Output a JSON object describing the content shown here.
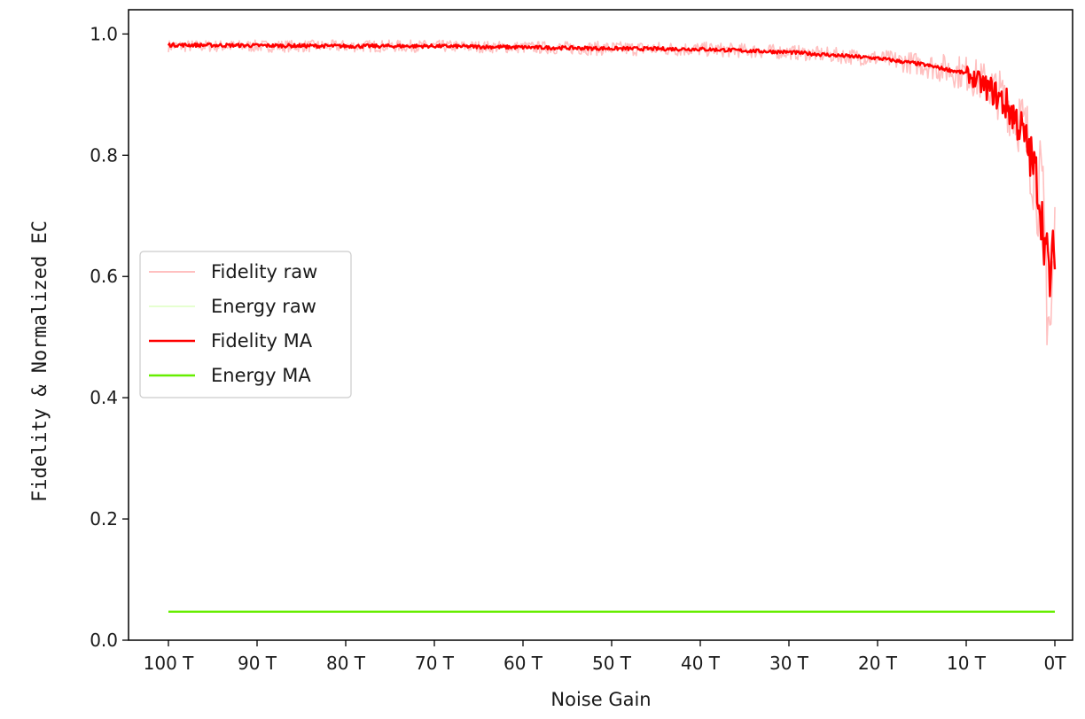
{
  "chart_data": {
    "type": "line",
    "title": "",
    "xlabel": "Noise Gain",
    "ylabel": "Fidelity & Normalized EC",
    "x_tick_labels": [
      "100 T",
      "90 T",
      "80 T",
      "70 T",
      "60 T",
      "50 T",
      "40 T",
      "30 T",
      "20 T",
      "10 T",
      "0T"
    ],
    "x_tick_positions": [
      100,
      90,
      80,
      70,
      60,
      50,
      40,
      30,
      20,
      10,
      0
    ],
    "x_direction": "decreasing",
    "xlim": [
      104.5,
      -2
    ],
    "ylim": [
      0.0,
      1.04
    ],
    "y_ticks": [
      0.0,
      0.2,
      0.4,
      0.6,
      0.8,
      1.0
    ],
    "y_tick_labels": [
      "0.0",
      "0.2",
      "0.4",
      "0.6",
      "0.8",
      "1.0"
    ],
    "grid": false,
    "legend_position": "center-left",
    "series": [
      {
        "name": "Fidelity raw",
        "color": "#ffc0c0",
        "x": [
          100,
          90,
          80,
          70,
          60,
          50,
          40,
          30,
          20,
          15,
          10,
          7,
          5,
          4,
          3,
          2,
          1.5,
          1,
          0.5,
          0
        ],
        "values": [
          0.98,
          0.98,
          0.98,
          0.98,
          0.978,
          0.976,
          0.975,
          0.97,
          0.96,
          0.95,
          0.935,
          0.91,
          0.88,
          0.86,
          0.82,
          0.76,
          0.72,
          0.62,
          0.5,
          0.66
        ],
        "band": [
          0.01,
          0.01,
          0.01,
          0.01,
          0.01,
          0.012,
          0.012,
          0.012,
          0.014,
          0.02,
          0.03,
          0.04,
          0.05,
          0.06,
          0.07,
          0.09,
          0.1,
          0.12,
          0.13,
          0.12
        ]
      },
      {
        "name": "Energy raw",
        "color": "#e6ffd0",
        "x": [
          100,
          0
        ],
        "values": [
          0.047,
          0.047
        ]
      },
      {
        "name": "Fidelity MA",
        "color": "#ff0000",
        "x": [
          100,
          90,
          80,
          70,
          60,
          50,
          40,
          30,
          20,
          15,
          10,
          7,
          5,
          4,
          3,
          2,
          1.5,
          1,
          0.5,
          0
        ],
        "values": [
          0.982,
          0.981,
          0.98,
          0.98,
          0.978,
          0.976,
          0.975,
          0.97,
          0.96,
          0.95,
          0.935,
          0.905,
          0.875,
          0.85,
          0.81,
          0.76,
          0.7,
          0.64,
          0.59,
          0.66
        ]
      },
      {
        "name": "Energy MA",
        "color": "#66ee00",
        "x": [
          100,
          0
        ],
        "values": [
          0.047,
          0.047
        ]
      }
    ]
  }
}
